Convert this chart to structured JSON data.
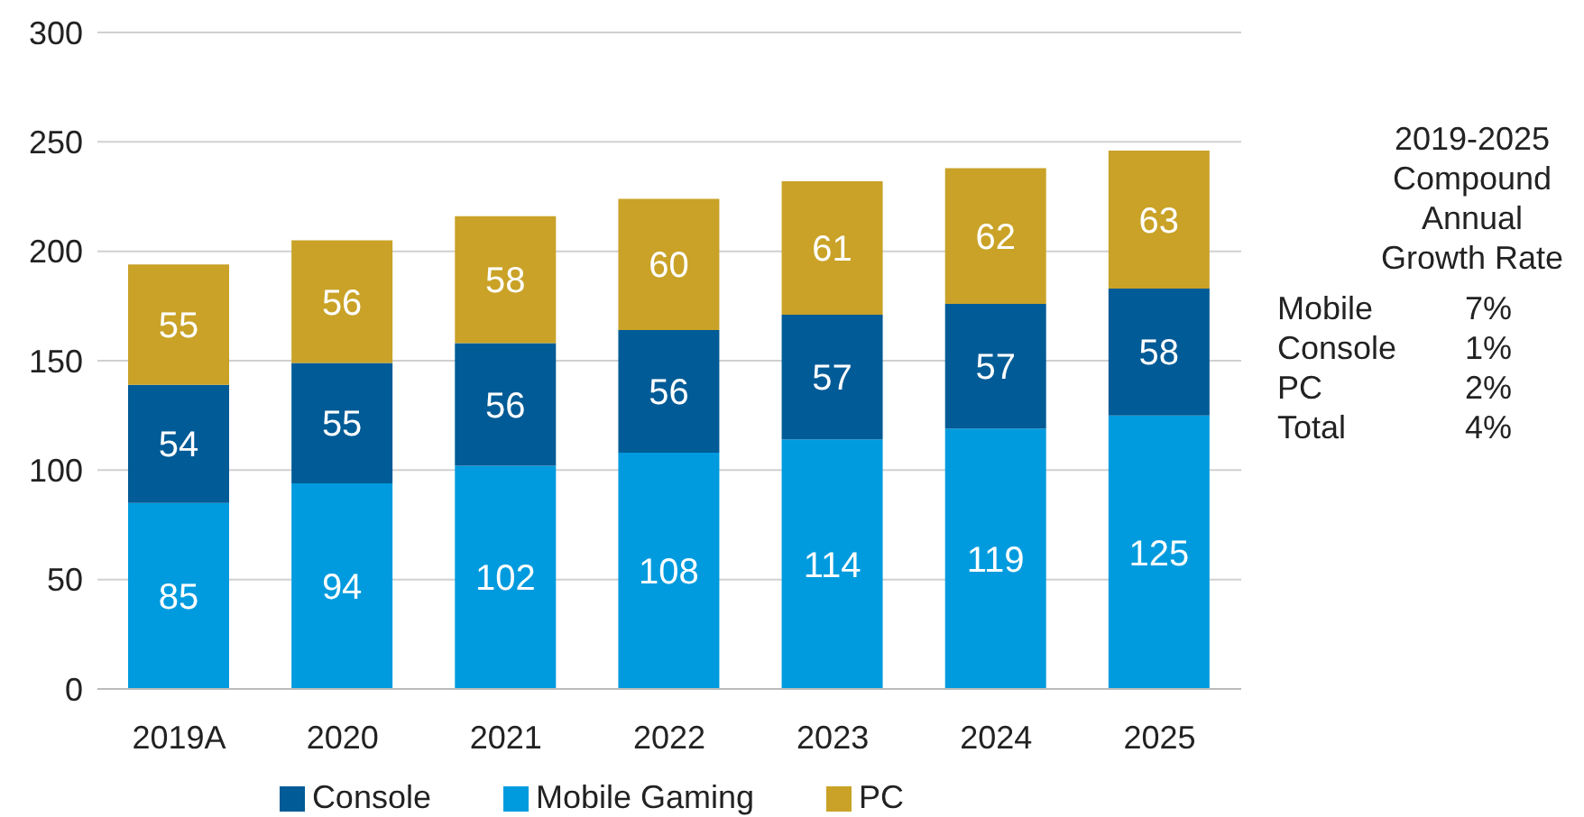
{
  "chart_data": {
    "type": "bar",
    "stacked": true,
    "categories": [
      "2019A",
      "2020",
      "2021",
      "2022",
      "2023",
      "2024",
      "2025"
    ],
    "series": [
      {
        "name": "Mobile Gaming",
        "color": "#009bde",
        "values": [
          85,
          94,
          102,
          108,
          114,
          119,
          125
        ]
      },
      {
        "name": "Console",
        "color": "#005b96",
        "values": [
          54,
          55,
          56,
          56,
          57,
          57,
          58
        ]
      },
      {
        "name": "PC",
        "color": "#c9a227",
        "values": [
          55,
          56,
          58,
          60,
          61,
          62,
          63
        ]
      }
    ],
    "ylim": [
      0,
      300
    ],
    "yticks": [
      0,
      50,
      100,
      150,
      200,
      250,
      300
    ],
    "grid": "y",
    "legend": "bottom",
    "data_labels": true,
    "annotations": [
      "2019-2025 Compound Annual Growth Rate",
      "Mobile 7%",
      "Console 1%",
      "PC 2%",
      "Total 4%"
    ]
  }
}
